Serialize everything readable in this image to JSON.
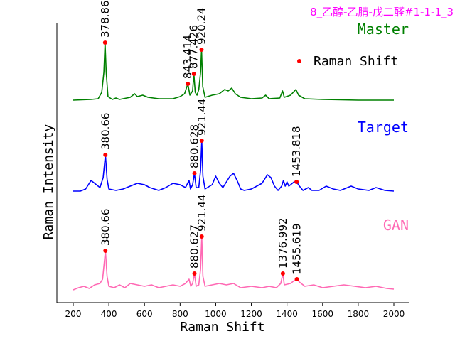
{
  "chart_data": {
    "type": "line",
    "title": "8_乙醇-乙腈-戊二醛#1-1-1_3",
    "xlabel": "Raman Shift",
    "ylabel": "Raman Intensity",
    "xlim": [
      200,
      2000
    ],
    "xticks": [
      200,
      400,
      600,
      800,
      1000,
      1200,
      1400,
      1600,
      1800,
      2000
    ],
    "grid": false,
    "legend": {
      "position": "top-right",
      "marker_label": "Raman Shift",
      "marker_color": "#ff0000"
    },
    "series": [
      {
        "name": "Master",
        "color": "#008000",
        "baseline": 142,
        "points": [
          [
            200,
            1
          ],
          [
            300,
            2
          ],
          [
            340,
            3
          ],
          [
            360,
            12
          ],
          [
            372,
            40
          ],
          [
            378.86,
            82
          ],
          [
            385,
            40
          ],
          [
            395,
            6
          ],
          [
            420,
            2
          ],
          [
            440,
            4
          ],
          [
            460,
            2
          ],
          [
            520,
            5
          ],
          [
            545,
            10
          ],
          [
            560,
            6
          ],
          [
            590,
            8
          ],
          [
            620,
            5
          ],
          [
            680,
            3
          ],
          [
            760,
            3
          ],
          [
            800,
            6
          ],
          [
            825,
            10
          ],
          [
            843.414,
            24
          ],
          [
            855,
            8
          ],
          [
            870,
            14
          ],
          [
            877.426,
            38
          ],
          [
            885,
            12
          ],
          [
            895,
            8
          ],
          [
            905,
            16
          ],
          [
            915,
            40
          ],
          [
            920.24,
            72
          ],
          [
            927,
            20
          ],
          [
            940,
            5
          ],
          [
            980,
            8
          ],
          [
            1020,
            10
          ],
          [
            1050,
            16
          ],
          [
            1070,
            14
          ],
          [
            1090,
            18
          ],
          [
            1110,
            10
          ],
          [
            1140,
            5
          ],
          [
            1200,
            3
          ],
          [
            1260,
            4
          ],
          [
            1280,
            8
          ],
          [
            1300,
            3
          ],
          [
            1360,
            4
          ],
          [
            1375,
            14
          ],
          [
            1385,
            5
          ],
          [
            1420,
            8
          ],
          [
            1450,
            16
          ],
          [
            1465,
            8
          ],
          [
            1500,
            3
          ],
          [
            1600,
            2
          ],
          [
            1800,
            1
          ],
          [
            2000,
            1
          ]
        ],
        "peaks": [
          {
            "x": 378.86,
            "label": "378.86"
          },
          {
            "x": 843.414,
            "label": "843.414"
          },
          {
            "x": 877.426,
            "label": "877.426"
          },
          {
            "x": 920.24,
            "label": "920.24"
          }
        ]
      },
      {
        "name": "Target",
        "color": "#0000ff",
        "baseline": 270,
        "points": [
          [
            200,
            1
          ],
          [
            240,
            1
          ],
          [
            270,
            4
          ],
          [
            300,
            16
          ],
          [
            330,
            10
          ],
          [
            350,
            6
          ],
          [
            368,
            20
          ],
          [
            380.66,
            52
          ],
          [
            390,
            18
          ],
          [
            400,
            4
          ],
          [
            440,
            2
          ],
          [
            480,
            4
          ],
          [
            520,
            8
          ],
          [
            560,
            12
          ],
          [
            600,
            10
          ],
          [
            630,
            6
          ],
          [
            680,
            2
          ],
          [
            720,
            6
          ],
          [
            760,
            12
          ],
          [
            800,
            10
          ],
          [
            830,
            6
          ],
          [
            850,
            16
          ],
          [
            858,
            4
          ],
          [
            870,
            10
          ],
          [
            880.628,
            26
          ],
          [
            890,
            6
          ],
          [
            905,
            6
          ],
          [
            915,
            30
          ],
          [
            921.44,
            72
          ],
          [
            928,
            22
          ],
          [
            940,
            4
          ],
          [
            980,
            10
          ],
          [
            1000,
            22
          ],
          [
            1020,
            12
          ],
          [
            1040,
            6
          ],
          [
            1060,
            14
          ],
          [
            1080,
            22
          ],
          [
            1100,
            26
          ],
          [
            1120,
            16
          ],
          [
            1140,
            4
          ],
          [
            1160,
            2
          ],
          [
            1200,
            4
          ],
          [
            1230,
            8
          ],
          [
            1260,
            12
          ],
          [
            1290,
            24
          ],
          [
            1310,
            20
          ],
          [
            1330,
            8
          ],
          [
            1350,
            2
          ],
          [
            1370,
            8
          ],
          [
            1380,
            16
          ],
          [
            1390,
            8
          ],
          [
            1400,
            14
          ],
          [
            1410,
            8
          ],
          [
            1420,
            10
          ],
          [
            1440,
            14
          ],
          [
            1453.818,
            14
          ],
          [
            1470,
            8
          ],
          [
            1490,
            2
          ],
          [
            1520,
            6
          ],
          [
            1540,
            2
          ],
          [
            1580,
            2
          ],
          [
            1620,
            8
          ],
          [
            1660,
            4
          ],
          [
            1700,
            2
          ],
          [
            1760,
            8
          ],
          [
            1800,
            4
          ],
          [
            1860,
            2
          ],
          [
            1900,
            6
          ],
          [
            1950,
            2
          ],
          [
            2000,
            1
          ]
        ],
        "peaks": [
          {
            "x": 380.66,
            "label": "380.66"
          },
          {
            "x": 880.628,
            "label": "880.628"
          },
          {
            "x": 921.44,
            "label": "921.44"
          },
          {
            "x": 1453.818,
            "label": "1453.818"
          }
        ]
      },
      {
        "name": "GAN",
        "color": "#ff69b4",
        "baseline": 409,
        "points": [
          [
            200,
            1
          ],
          [
            230,
            4
          ],
          [
            260,
            6
          ],
          [
            290,
            3
          ],
          [
            320,
            8
          ],
          [
            350,
            10
          ],
          [
            365,
            16
          ],
          [
            380.66,
            56
          ],
          [
            390,
            20
          ],
          [
            400,
            6
          ],
          [
            430,
            4
          ],
          [
            460,
            8
          ],
          [
            490,
            4
          ],
          [
            520,
            10
          ],
          [
            560,
            8
          ],
          [
            600,
            6
          ],
          [
            640,
            8
          ],
          [
            680,
            4
          ],
          [
            720,
            6
          ],
          [
            760,
            8
          ],
          [
            800,
            6
          ],
          [
            830,
            10
          ],
          [
            850,
            16
          ],
          [
            860,
            6
          ],
          [
            870,
            10
          ],
          [
            880.627,
            24
          ],
          [
            890,
            6
          ],
          [
            905,
            8
          ],
          [
            915,
            30
          ],
          [
            921.44,
            76
          ],
          [
            928,
            20
          ],
          [
            940,
            6
          ],
          [
            980,
            8
          ],
          [
            1020,
            10
          ],
          [
            1060,
            8
          ],
          [
            1100,
            10
          ],
          [
            1140,
            4
          ],
          [
            1200,
            6
          ],
          [
            1260,
            4
          ],
          [
            1300,
            6
          ],
          [
            1340,
            4
          ],
          [
            1365,
            10
          ],
          [
            1376.992,
            24
          ],
          [
            1385,
            8
          ],
          [
            1420,
            10
          ],
          [
            1440,
            14
          ],
          [
            1455.619,
            16
          ],
          [
            1470,
            12
          ],
          [
            1500,
            6
          ],
          [
            1550,
            8
          ],
          [
            1600,
            4
          ],
          [
            1660,
            6
          ],
          [
            1720,
            8
          ],
          [
            1780,
            6
          ],
          [
            1840,
            4
          ],
          [
            1900,
            6
          ],
          [
            1960,
            3
          ],
          [
            2000,
            2
          ]
        ],
        "peaks": [
          {
            "x": 380.66,
            "label": "380.66"
          },
          {
            "x": 880.627,
            "label": "880.627"
          },
          {
            "x": 921.44,
            "label": "921.44"
          },
          {
            "x": 1376.992,
            "label": "1376.992"
          },
          {
            "x": 1455.619,
            "label": "1455.619"
          }
        ]
      }
    ]
  }
}
